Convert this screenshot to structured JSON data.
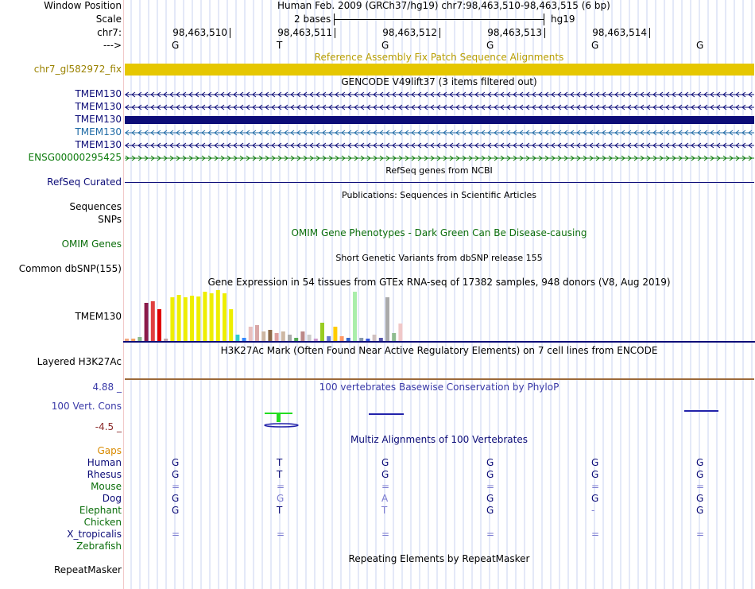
{
  "header": {
    "window_position_label": "Window Position",
    "assembly_info": "Human Feb. 2009 (GRCh37/hg19)   chr7:98,463,510-98,463,515 (6 bp)",
    "scale_label": "Scale",
    "scale_text": "2 bases",
    "scale_db": "hg19",
    "chr_label": "chr7:",
    "strand_label": "--->",
    "positions": [
      "98,463,510",
      "98,463,511",
      "98,463,512",
      "98,463,513",
      "98,463,514"
    ],
    "bases": [
      "G",
      "T",
      "G",
      "G",
      "G",
      "G"
    ]
  },
  "fix_patch": {
    "title": "Reference Assembly Fix Patch Sequence Alignments",
    "label": "chr7_gl582972_fix",
    "color": "#e6c700"
  },
  "gencode": {
    "title": "GENCODE V49lift37 (3 items filtered out)",
    "items": [
      {
        "label": "TMEM130",
        "color": "#0c0c78",
        "style": "arrows-left"
      },
      {
        "label": "TMEM130",
        "color": "#0c0c78",
        "style": "arrows-left"
      },
      {
        "label": "TMEM130",
        "color": "#0c0c78",
        "style": "solid"
      },
      {
        "label": "TMEM130",
        "color": "#1e6aa5",
        "style": "arrows-left"
      },
      {
        "label": "TMEM130",
        "color": "#0c0c78",
        "style": "arrows-left"
      },
      {
        "label": "ENSG00000295425",
        "color": "#0b7a0b",
        "style": "arrows-right"
      }
    ]
  },
  "refseq": {
    "title": "RefSeq genes from NCBI",
    "label": "RefSeq Curated",
    "color": "#0c0c78"
  },
  "publications": {
    "title": "Publications: Sequences in Scientific Articles",
    "sequences_label": "Sequences",
    "snps_label": "SNPs"
  },
  "omim": {
    "title": "OMIM Gene Phenotypes - Dark Green Can Be Disease-causing",
    "label": "OMIM Genes",
    "color": "#0b6e0b"
  },
  "dbsnp": {
    "title": "Short Genetic Variants from dbSNP release 155",
    "label": "Common dbSNP(155)"
  },
  "gtex": {
    "title": "Gene Expression in 54 tissues from GTEx RNA-seq of 17382 samples, 948 donors (V8, Aug 2019)",
    "label": "TMEM130"
  },
  "h3k27ac": {
    "title": "H3K27Ac Mark (Often Found Near Active Regulatory Elements) on 7 cell lines from ENCODE",
    "label": "Layered H3K27Ac"
  },
  "phylop": {
    "title": "100 vertebrates Basewise Conservation by PhyloP",
    "label": "100 Vert. Cons",
    "max": "4.88 _",
    "min": "-4.5 _"
  },
  "multiz": {
    "title": "Multiz Alignments of 100 Vertebrates",
    "gaps_label": "Gaps",
    "species": [
      {
        "name": "Human",
        "color": "#0c0c78",
        "bases": [
          "G",
          "T",
          "G",
          "G",
          "G",
          "G"
        ]
      },
      {
        "name": "Rhesus",
        "color": "#0c0c78",
        "bases": [
          "G",
          "T",
          "G",
          "G",
          "G",
          "G"
        ]
      },
      {
        "name": "Mouse",
        "color": "#0b6e0b",
        "bases": [
          "=",
          "=",
          "=",
          "=",
          "=",
          "="
        ]
      },
      {
        "name": "Dog",
        "color": "#0c0c78",
        "bases": [
          "G",
          "G",
          "A",
          "G",
          "G",
          "G"
        ]
      },
      {
        "name": "Elephant",
        "color": "#0b6e0b",
        "bases": [
          "G",
          "T",
          "T",
          "G",
          "-",
          "G"
        ]
      },
      {
        "name": "Chicken",
        "color": "#0b6e0b",
        "bases": [
          "",
          "",
          "",
          "",
          "",
          ""
        ]
      },
      {
        "name": "X_tropicalis",
        "color": "#0c0c78",
        "bases": [
          "=",
          "=",
          "=",
          "=",
          "=",
          "="
        ]
      },
      {
        "name": "Zebrafish",
        "color": "#0b6e0b",
        "bases": [
          "",
          "",
          "",
          "",
          "",
          ""
        ]
      }
    ]
  },
  "repeatmasker": {
    "title": "Repeating Elements by RepeatMasker",
    "label": "RepeatMasker"
  }
}
